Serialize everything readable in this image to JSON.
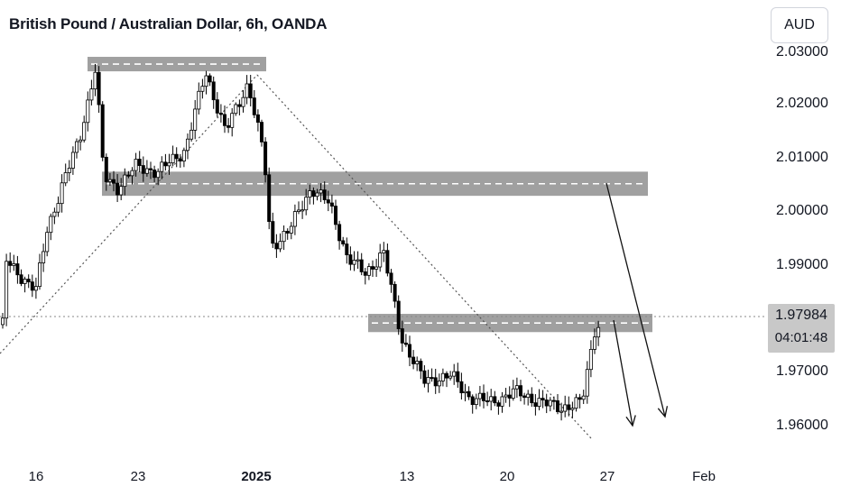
{
  "chart_data": {
    "type": "candlestick",
    "title": "British Pound / Australian Dollar, 6h, OANDA",
    "currency": "AUD",
    "y_ticks": [
      "2.02000",
      "2.01000",
      "2.00000",
      "1.99000",
      "1.97000",
      "1.96000"
    ],
    "x_ticks": [
      "16",
      "23",
      "2025",
      "13",
      "20",
      "27",
      "Feb"
    ],
    "last_price": "1.97984",
    "countdown": "04:01:48",
    "ylim": [
      1.956,
      2.031
    ],
    "zones": [
      {
        "from": 2.0257,
        "to": 2.0284
      },
      {
        "from": 2.0025,
        "to": 2.007
      },
      {
        "from": 1.9771,
        "to": 1.9805
      }
    ],
    "colors": {
      "up": "#ffffff",
      "down": "#000000",
      "zone": "#8f8f8f"
    }
  }
}
